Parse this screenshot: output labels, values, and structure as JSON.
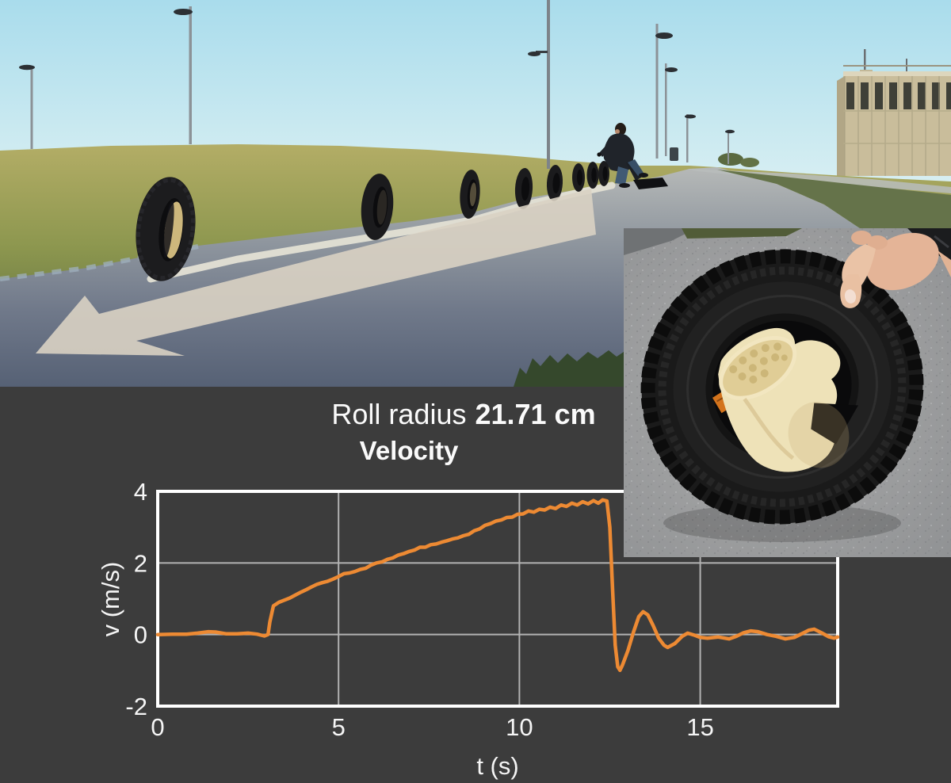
{
  "panel": {
    "background": "#3c3c3c",
    "roll_radius_label": "Roll radius",
    "roll_radius_value": "21.71 cm"
  },
  "chart_data": {
    "type": "line",
    "title": "Velocity",
    "xlabel": "t (s)",
    "ylabel": "v (m/s)",
    "xlim": [
      0,
      18.8
    ],
    "ylim": [
      -2,
      4
    ],
    "xticks": [
      0,
      5,
      10,
      15
    ],
    "yticks": [
      4,
      2,
      0,
      -2
    ],
    "xgrid": [
      5,
      10,
      15
    ],
    "ygrid": [
      2,
      0
    ],
    "grid": true,
    "legend_position": "none",
    "line_color": "#ed8a33",
    "axis_color": "#ffffff",
    "grid_color": "#b2b2b2",
    "text_color": "#f5f5f5",
    "points": [
      [
        0,
        0
      ],
      [
        0.4,
        0.01
      ],
      [
        0.8,
        0.01
      ],
      [
        1.1,
        0.04
      ],
      [
        1.4,
        0.08
      ],
      [
        1.6,
        0.07
      ],
      [
        1.9,
        0.02
      ],
      [
        2.2,
        0.02
      ],
      [
        2.5,
        0.04
      ],
      [
        2.75,
        0.01
      ],
      [
        2.95,
        -0.04
      ],
      [
        3.05,
        0.0
      ],
      [
        3.1,
        0.35
      ],
      [
        3.2,
        0.8
      ],
      [
        3.35,
        0.9
      ],
      [
        3.5,
        0.96
      ],
      [
        3.65,
        1.02
      ],
      [
        3.8,
        1.1
      ],
      [
        3.95,
        1.18
      ],
      [
        4.1,
        1.25
      ],
      [
        4.25,
        1.33
      ],
      [
        4.4,
        1.4
      ],
      [
        4.55,
        1.45
      ],
      [
        4.7,
        1.49
      ],
      [
        4.85,
        1.55
      ],
      [
        5.0,
        1.62
      ],
      [
        5.15,
        1.7
      ],
      [
        5.3,
        1.72
      ],
      [
        5.45,
        1.76
      ],
      [
        5.6,
        1.82
      ],
      [
        5.75,
        1.85
      ],
      [
        5.9,
        1.94
      ],
      [
        6.05,
        2.0
      ],
      [
        6.2,
        2.03
      ],
      [
        6.35,
        2.1
      ],
      [
        6.5,
        2.14
      ],
      [
        6.65,
        2.22
      ],
      [
        6.8,
        2.26
      ],
      [
        6.95,
        2.32
      ],
      [
        7.1,
        2.36
      ],
      [
        7.25,
        2.44
      ],
      [
        7.4,
        2.44
      ],
      [
        7.55,
        2.51
      ],
      [
        7.7,
        2.53
      ],
      [
        7.85,
        2.58
      ],
      [
        8.0,
        2.62
      ],
      [
        8.15,
        2.67
      ],
      [
        8.3,
        2.7
      ],
      [
        8.45,
        2.76
      ],
      [
        8.6,
        2.8
      ],
      [
        8.75,
        2.9
      ],
      [
        8.9,
        2.95
      ],
      [
        9.05,
        3.05
      ],
      [
        9.2,
        3.1
      ],
      [
        9.35,
        3.17
      ],
      [
        9.5,
        3.2
      ],
      [
        9.65,
        3.27
      ],
      [
        9.8,
        3.28
      ],
      [
        9.95,
        3.36
      ],
      [
        10.1,
        3.37
      ],
      [
        10.25,
        3.45
      ],
      [
        10.4,
        3.42
      ],
      [
        10.55,
        3.5
      ],
      [
        10.7,
        3.48
      ],
      [
        10.85,
        3.56
      ],
      [
        11.0,
        3.52
      ],
      [
        11.15,
        3.62
      ],
      [
        11.3,
        3.58
      ],
      [
        11.45,
        3.67
      ],
      [
        11.6,
        3.62
      ],
      [
        11.75,
        3.71
      ],
      [
        11.9,
        3.65
      ],
      [
        12.05,
        3.74
      ],
      [
        12.18,
        3.67
      ],
      [
        12.3,
        3.76
      ],
      [
        12.42,
        3.73
      ],
      [
        12.5,
        3.0
      ],
      [
        12.58,
        1.2
      ],
      [
        12.65,
        -0.3
      ],
      [
        12.72,
        -0.9
      ],
      [
        12.78,
        -1.0
      ],
      [
        12.85,
        -0.85
      ],
      [
        13.0,
        -0.45
      ],
      [
        13.15,
        0.05
      ],
      [
        13.3,
        0.5
      ],
      [
        13.42,
        0.64
      ],
      [
        13.55,
        0.55
      ],
      [
        13.7,
        0.25
      ],
      [
        13.85,
        -0.1
      ],
      [
        14.0,
        -0.3
      ],
      [
        14.1,
        -0.36
      ],
      [
        14.3,
        -0.25
      ],
      [
        14.5,
        -0.05
      ],
      [
        14.65,
        0.04
      ],
      [
        14.85,
        -0.02
      ],
      [
        15.0,
        -0.08
      ],
      [
        15.2,
        -0.1
      ],
      [
        15.5,
        -0.07
      ],
      [
        15.8,
        -0.12
      ],
      [
        16.0,
        -0.05
      ],
      [
        16.2,
        0.05
      ],
      [
        16.4,
        0.1
      ],
      [
        16.6,
        0.08
      ],
      [
        16.85,
        0.0
      ],
      [
        17.1,
        -0.05
      ],
      [
        17.35,
        -0.12
      ],
      [
        17.6,
        -0.08
      ],
      [
        17.8,
        0.02
      ],
      [
        18.0,
        0.12
      ],
      [
        18.15,
        0.15
      ],
      [
        18.35,
        0.05
      ],
      [
        18.55,
        -0.06
      ],
      [
        18.7,
        -0.1
      ],
      [
        18.8,
        -0.07
      ]
    ]
  }
}
